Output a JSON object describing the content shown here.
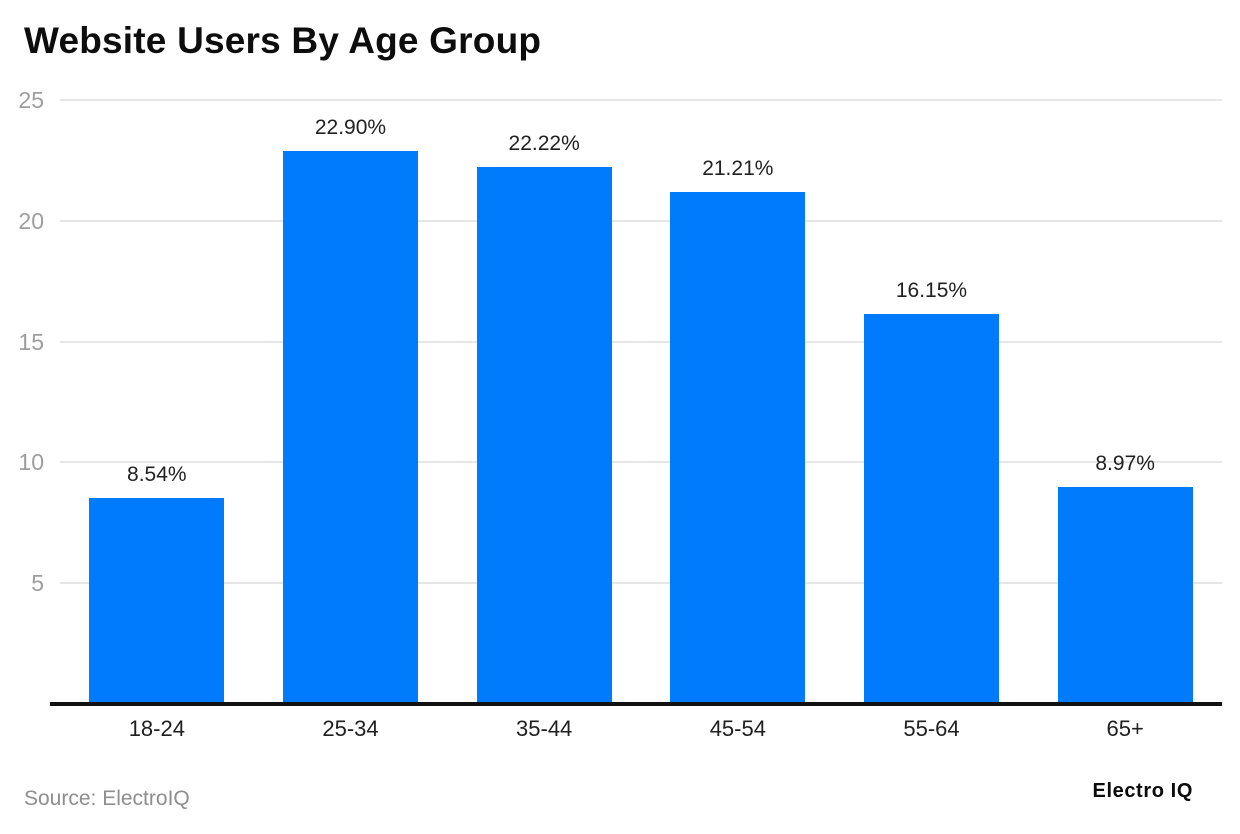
{
  "page": {
    "background": "#ffffff"
  },
  "chart_data": {
    "type": "bar",
    "title": "Website Users By Age Group",
    "categories": [
      "18-24",
      "25-34",
      "35-44",
      "45-54",
      "55-64",
      "65+"
    ],
    "values": [
      8.54,
      22.9,
      22.22,
      21.21,
      16.15,
      8.97
    ],
    "value_labels": [
      "8.54%",
      "22.90%",
      "22.22%",
      "21.21%",
      "16.15%",
      "8.97%"
    ],
    "xlabel": "",
    "ylabel": "",
    "ylim": [
      0,
      25
    ],
    "yticks": [
      5,
      10,
      15,
      20,
      25
    ],
    "grid": true,
    "legend": false,
    "bar_color": "#007bfb",
    "gridline_color": "#e6e6e6",
    "axis_line_color": "#111111",
    "y_tick_label_color": "#9e9e9e",
    "x_tick_label_color": "#1f1f1f",
    "value_label_color": "#212121"
  },
  "footer": {
    "source": "Source: ElectroIQ",
    "brand": "Electro IQ"
  }
}
